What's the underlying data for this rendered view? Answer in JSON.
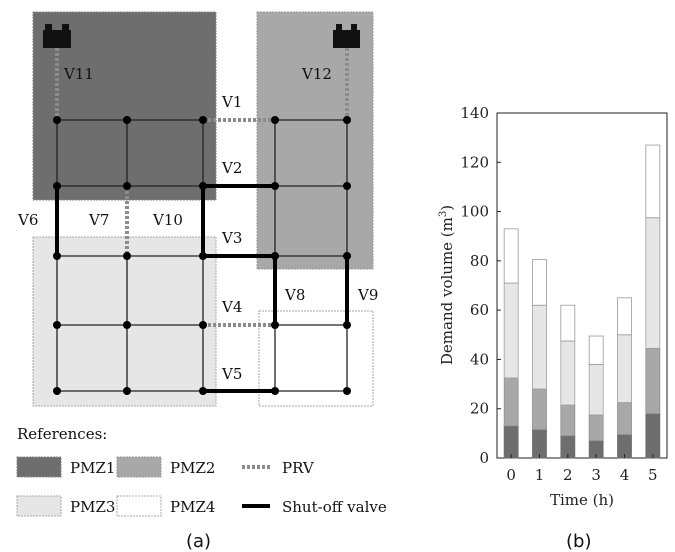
{
  "colors": {
    "pmz1": "#6e6e6e",
    "pmz2": "#a8a8a8",
    "pmz3": "#e6e6e6",
    "pmz4": "#ffffff",
    "pipe": "#222222",
    "prv": "#8c8c8c"
  },
  "network": {
    "valve_labels": [
      "V1",
      "V2",
      "V3",
      "V4",
      "V5",
      "V6",
      "V7",
      "V8",
      "V9",
      "V10",
      "V11",
      "V12"
    ],
    "references_title": "References:",
    "legend": {
      "pmz1": "PMZ1",
      "pmz2": "PMZ2",
      "pmz3": "PMZ3",
      "pmz4": "PMZ4",
      "prv": "PRV",
      "shutoff": "Shut-off valve"
    },
    "caption": "(a)",
    "icons": [
      "tank-icon",
      "tank-icon"
    ]
  },
  "chart_caption": "(b)",
  "chart_data": {
    "type": "bar",
    "stacked": true,
    "categories": [
      "0",
      "1",
      "2",
      "3",
      "4",
      "5"
    ],
    "series": [
      {
        "name": "PMZ1",
        "values": [
          13,
          11.5,
          9,
          7,
          9.5,
          18
        ]
      },
      {
        "name": "PMZ2",
        "values": [
          19.5,
          16.5,
          12.5,
          10.5,
          13,
          26.5
        ]
      },
      {
        "name": "PMZ3",
        "values": [
          38.5,
          34,
          26,
          20.5,
          27.5,
          53
        ]
      },
      {
        "name": "PMZ4",
        "values": [
          22,
          18.5,
          14.5,
          11.5,
          15,
          29.5
        ]
      }
    ],
    "xlabel": "Time (h)",
    "ylabel": "Demand volume (m",
    "ylabel_sup": "3",
    "ylabel_end": ")",
    "ylim": [
      0,
      140
    ],
    "yticks": [
      "0",
      "20",
      "40",
      "60",
      "80",
      "100",
      "120",
      "140"
    ],
    "grid": false
  }
}
